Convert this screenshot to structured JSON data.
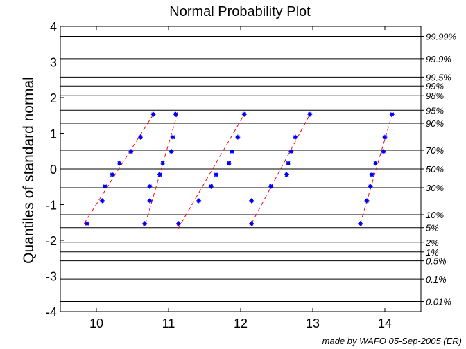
{
  "chart_data": {
    "type": "scatter",
    "title": "Normal Probability Plot",
    "xlabel": "",
    "ylabel": "Quantiles of standard normal",
    "xlim": [
      9.5,
      14.5
    ],
    "ylim": [
      -4,
      4
    ],
    "x_ticks": [
      "10",
      "11",
      "12",
      "13",
      "14"
    ],
    "y_ticks": [
      "-4",
      "-3",
      "-2",
      "-1",
      "0",
      "1",
      "2",
      "3",
      "4"
    ],
    "grid": "horizontal probability lines",
    "probability_lines": [
      {
        "p": 0.0001,
        "label": "0.01%"
      },
      {
        "p": 0.001,
        "label": "0.1%"
      },
      {
        "p": 0.005,
        "label": "0.5%"
      },
      {
        "p": 0.01,
        "label": "1%"
      },
      {
        "p": 0.02,
        "label": "2%"
      },
      {
        "p": 0.05,
        "label": "5%"
      },
      {
        "p": 0.1,
        "label": "10%"
      },
      {
        "p": 0.3,
        "label": "30%"
      },
      {
        "p": 0.5,
        "label": "50%"
      },
      {
        "p": 0.7,
        "label": "70%"
      },
      {
        "p": 0.9,
        "label": "90%"
      },
      {
        "p": 0.95,
        "label": "95%"
      },
      {
        "p": 0.98,
        "label": "98%"
      },
      {
        "p": 0.99,
        "label": "99%"
      },
      {
        "p": 0.995,
        "label": "99.5%"
      },
      {
        "p": 0.999,
        "label": "99.9%"
      },
      {
        "p": 0.9999,
        "label": "99.99%"
      }
    ],
    "marker_color": "#0000ff",
    "fit_line_color": "#ff0000",
    "series": [
      {
        "points": [
          [
            9.87,
            -1.53
          ],
          [
            10.08,
            -0.89
          ],
          [
            10.12,
            -0.49
          ],
          [
            10.22,
            -0.16
          ],
          [
            10.32,
            0.16
          ],
          [
            10.48,
            0.49
          ],
          [
            10.61,
            0.89
          ],
          [
            10.79,
            1.53
          ]
        ],
        "fit": [
          [
            9.83,
            -1.53
          ],
          [
            10.79,
            1.53
          ]
        ]
      },
      {
        "points": [
          [
            10.67,
            -1.53
          ],
          [
            10.74,
            -0.89
          ],
          [
            10.74,
            -0.49
          ],
          [
            10.88,
            -0.16
          ],
          [
            10.92,
            0.16
          ],
          [
            11.04,
            0.49
          ],
          [
            11.06,
            0.89
          ],
          [
            11.1,
            1.53
          ]
        ],
        "fit": [
          [
            10.68,
            -1.53
          ],
          [
            11.12,
            1.53
          ]
        ]
      },
      {
        "points": [
          [
            11.14,
            -1.53
          ],
          [
            11.42,
            -0.89
          ],
          [
            11.59,
            -0.49
          ],
          [
            11.66,
            -0.16
          ],
          [
            11.84,
            0.16
          ],
          [
            11.88,
            0.49
          ],
          [
            11.96,
            0.89
          ],
          [
            12.05,
            1.53
          ]
        ],
        "fit": [
          [
            11.13,
            -1.68
          ],
          [
            12.05,
            1.53
          ]
        ]
      },
      {
        "points": [
          [
            12.15,
            -1.53
          ],
          [
            12.15,
            -0.89
          ],
          [
            12.42,
            -0.49
          ],
          [
            12.64,
            -0.16
          ],
          [
            12.66,
            0.16
          ],
          [
            12.7,
            0.49
          ],
          [
            12.76,
            0.89
          ],
          [
            12.96,
            1.53
          ]
        ],
        "fit": [
          [
            12.15,
            -1.53
          ],
          [
            12.96,
            1.53
          ]
        ]
      },
      {
        "points": [
          [
            13.66,
            -1.53
          ],
          [
            13.75,
            -0.89
          ],
          [
            13.8,
            -0.49
          ],
          [
            13.82,
            -0.16
          ],
          [
            13.87,
            0.16
          ],
          [
            13.98,
            0.49
          ],
          [
            14.0,
            0.89
          ],
          [
            14.1,
            1.53
          ]
        ],
        "fit": [
          [
            13.66,
            -1.53
          ],
          [
            14.1,
            1.53
          ]
        ]
      }
    ],
    "credit": "made by WAFO 05-Sep-2005 (ER)"
  }
}
